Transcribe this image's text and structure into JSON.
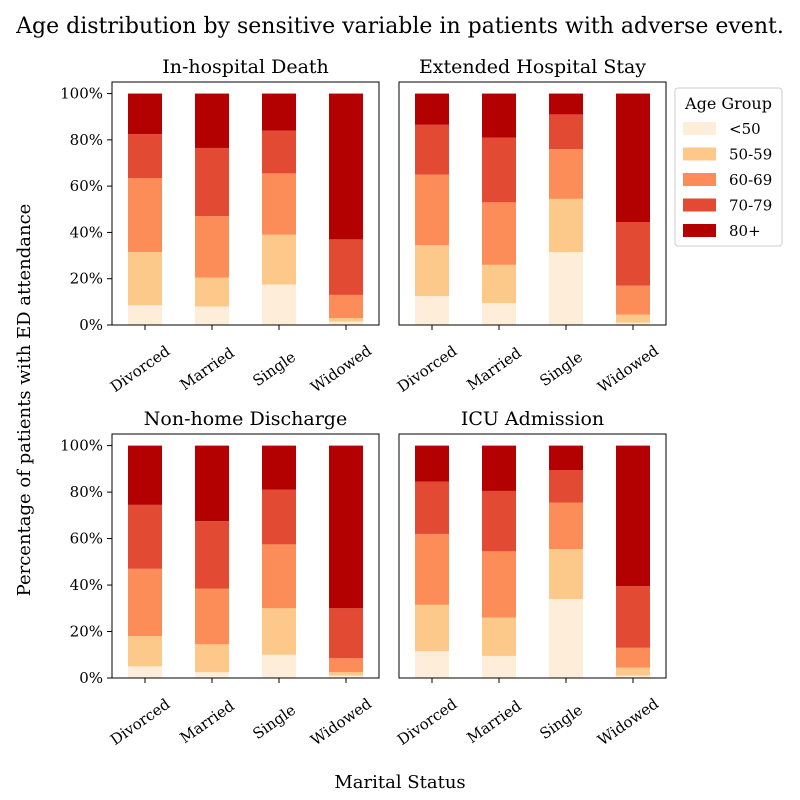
{
  "figure": {
    "title": "Age distribution by sensitive variable in patients with adverse event.",
    "xlabel": "Marital Status",
    "ylabel": "Percentage of patients with ED attendance"
  },
  "legend": {
    "title": "Age Group",
    "placement": "right of top-right panel",
    "entries": [
      "<50",
      "50-59",
      "60-69",
      "70-79",
      "80+"
    ]
  },
  "colors": [
    "#feedd8",
    "#fdc98a",
    "#fc8d59",
    "#e34a33",
    "#b30000"
  ],
  "chart_data": [
    {
      "type": "bar",
      "stacked": true,
      "title": "In-hospital Death",
      "categories": [
        "Divorced",
        "Married",
        "Single",
        "Widowed"
      ],
      "ylim": [
        0,
        100
      ],
      "yticks": [
        "0%",
        "20%",
        "40%",
        "60%",
        "80%",
        "100%"
      ],
      "series": [
        {
          "name": "<50",
          "values": [
            8.5,
            8,
            17.5,
            1.5
          ]
        },
        {
          "name": "50-59",
          "values": [
            23,
            12.5,
            21.5,
            1.5
          ]
        },
        {
          "name": "60-69",
          "values": [
            32,
            26.5,
            26.5,
            10
          ]
        },
        {
          "name": "70-79",
          "values": [
            19,
            29.5,
            18.5,
            24
          ]
        },
        {
          "name": "80+",
          "values": [
            17.5,
            23.5,
            16,
            63
          ]
        }
      ]
    },
    {
      "type": "bar",
      "stacked": true,
      "title": "Extended Hospital Stay",
      "categories": [
        "Divorced",
        "Married",
        "Single",
        "Widowed"
      ],
      "ylim": [
        0,
        100
      ],
      "series": [
        {
          "name": "<50",
          "values": [
            12.5,
            9.5,
            31.5,
            1
          ]
        },
        {
          "name": "50-59",
          "values": [
            22,
            16.5,
            23,
            3.5
          ]
        },
        {
          "name": "60-69",
          "values": [
            30.5,
            27,
            21.5,
            12.5
          ]
        },
        {
          "name": "70-79",
          "values": [
            21.5,
            28,
            15,
            27.5
          ]
        },
        {
          "name": "80+",
          "values": [
            13.5,
            19,
            9,
            55.5
          ]
        }
      ]
    },
    {
      "type": "bar",
      "stacked": true,
      "title": "Non-home Discharge",
      "categories": [
        "Divorced",
        "Married",
        "Single",
        "Widowed"
      ],
      "ylim": [
        0,
        100
      ],
      "yticks": [
        "0%",
        "20%",
        "40%",
        "60%",
        "80%",
        "100%"
      ],
      "series": [
        {
          "name": "<50",
          "values": [
            5,
            2.5,
            10,
            1
          ]
        },
        {
          "name": "50-59",
          "values": [
            13,
            12,
            20,
            1.5
          ]
        },
        {
          "name": "60-69",
          "values": [
            29,
            24,
            27.5,
            6
          ]
        },
        {
          "name": "70-79",
          "values": [
            27.5,
            29,
            23.5,
            21.5
          ]
        },
        {
          "name": "80+",
          "values": [
            25.5,
            32.5,
            19,
            70
          ]
        }
      ]
    },
    {
      "type": "bar",
      "stacked": true,
      "title": "ICU Admission",
      "categories": [
        "Divorced",
        "Married",
        "Single",
        "Widowed"
      ],
      "ylim": [
        0,
        100
      ],
      "series": [
        {
          "name": "<50",
          "values": [
            11.5,
            9.5,
            34,
            1
          ]
        },
        {
          "name": "50-59",
          "values": [
            20,
            16.5,
            21.5,
            3.5
          ]
        },
        {
          "name": "60-69",
          "values": [
            30.5,
            28.5,
            20,
            8.5
          ]
        },
        {
          "name": "70-79",
          "values": [
            22.5,
            26,
            14,
            26.5
          ]
        },
        {
          "name": "80+",
          "values": [
            15.5,
            19.5,
            10.5,
            60.5
          ]
        }
      ]
    }
  ]
}
